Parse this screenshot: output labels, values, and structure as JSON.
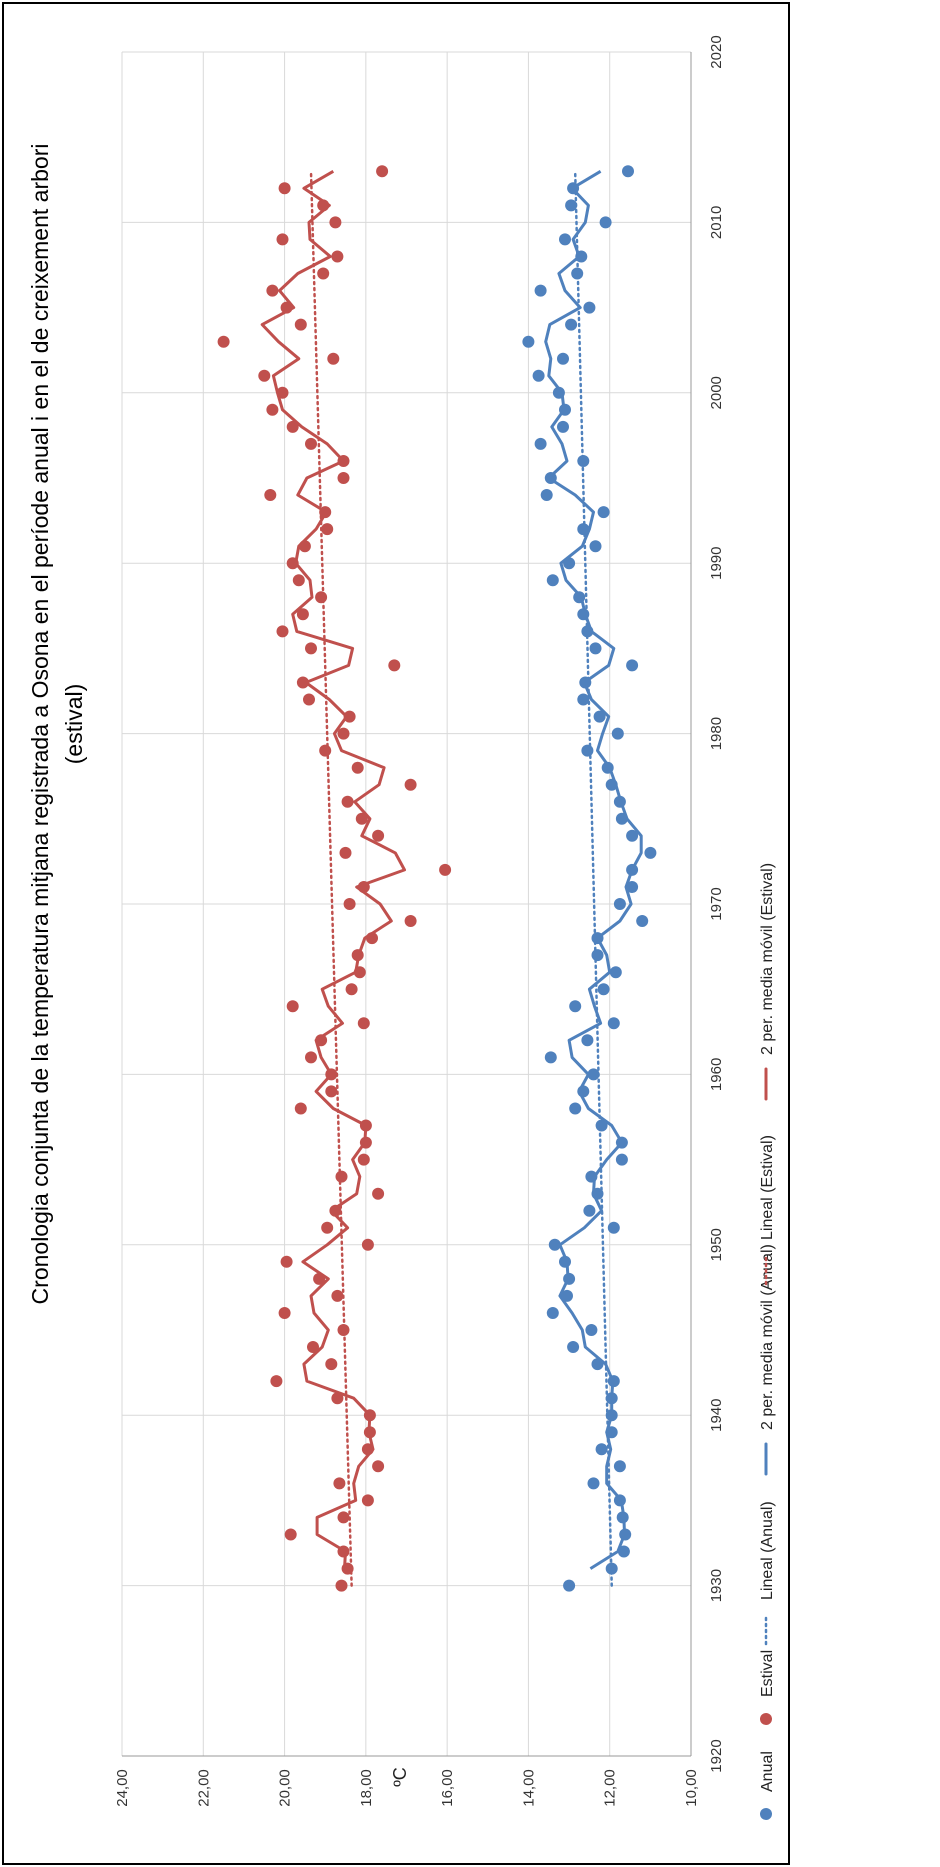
{
  "chart_data": {
    "type": "scatter",
    "title": "Cronologia conjunta de la temperatura  mitjana registrada a Osona en el període anual i en el de creixement arbori (estival)",
    "title_lines": [
      "Cronologia conjunta de la temperatura  mitjana registrada a Osona en el període anual i en el de creixement arbori",
      "(estival)"
    ],
    "xlabel": "",
    "ylabel": "ºC",
    "xlim": [
      1920,
      2020
    ],
    "ylim": [
      10,
      24
    ],
    "x_ticks": [
      "1920",
      "1930",
      "1940",
      "1950",
      "1960",
      "1970",
      "1980",
      "1990",
      "2000",
      "2010",
      "2020"
    ],
    "y_ticks": [
      "10,00",
      "12,00",
      "14,00",
      "16,00",
      "18,00",
      "20,00",
      "22,00",
      "24,00"
    ],
    "grid": true,
    "orientation": "rotated-90-ccw",
    "legend_position": "bottom",
    "colors": {
      "anual": "#4f81bd",
      "estival": "#c0504d"
    },
    "legend": [
      {
        "label": "Anual",
        "style": "marker",
        "series": "anual"
      },
      {
        "label": "Estival",
        "style": "marker",
        "series": "estival"
      },
      {
        "label": "Lineal (Anual)",
        "style": "dotted",
        "series": "anual"
      },
      {
        "label": "2 per. media móvil (Anual)",
        "style": "solid",
        "series": "anual"
      },
      {
        "label": "Lineal (Estival)",
        "style": "dotted",
        "series": "estival"
      },
      {
        "label": "2 per. media móvil (Estival)",
        "style": "solid",
        "series": "estival"
      }
    ],
    "x": [
      1930,
      1931,
      1932,
      1933,
      1934,
      1935,
      1936,
      1937,
      1938,
      1939,
      1940,
      1941,
      1942,
      1943,
      1944,
      1945,
      1946,
      1947,
      1948,
      1949,
      1950,
      1951,
      1952,
      1953,
      1954,
      1955,
      1956,
      1957,
      1958,
      1959,
      1960,
      1961,
      1962,
      1963,
      1964,
      1965,
      1966,
      1967,
      1968,
      1969,
      1970,
      1971,
      1972,
      1973,
      1974,
      1975,
      1976,
      1977,
      1978,
      1979,
      1980,
      1981,
      1982,
      1983,
      1984,
      1985,
      1986,
      1987,
      1988,
      1989,
      1990,
      1991,
      1992,
      1993,
      1994,
      1995,
      1996,
      1997,
      1998,
      1999,
      2000,
      2001,
      2002,
      2003,
      2004,
      2005,
      2006,
      2007,
      2008,
      2009,
      2010,
      2011,
      2012,
      2013
    ],
    "series": [
      {
        "name": "Anual",
        "key": "anual",
        "values": [
          13.0,
          11.95,
          11.65,
          11.62,
          11.68,
          11.75,
          12.4,
          11.75,
          12.2,
          11.95,
          11.95,
          11.95,
          11.9,
          12.3,
          12.9,
          12.45,
          13.4,
          13.05,
          13.0,
          13.1,
          13.35,
          11.9,
          12.5,
          12.3,
          12.45,
          11.7,
          11.7,
          12.2,
          12.85,
          12.65,
          12.4,
          13.45,
          12.55,
          11.9,
          12.85,
          12.15,
          11.85,
          12.3,
          12.3,
          11.2,
          11.75,
          11.45,
          11.45,
          11.0,
          11.45,
          11.7,
          11.75,
          11.95,
          12.05,
          12.55,
          11.8,
          12.25,
          12.65,
          12.6,
          11.45,
          12.35,
          12.55,
          12.65,
          12.75,
          13.4,
          13.0,
          12.35,
          12.65,
          12.15,
          13.55,
          13.45,
          12.65,
          13.7,
          13.15,
          13.1,
          13.25,
          13.75,
          13.15,
          14.0,
          12.95,
          12.5,
          13.7,
          12.8,
          12.7,
          13.1,
          12.1,
          12.95,
          12.9,
          11.55
        ]
      },
      {
        "name": "Estival",
        "key": "estival",
        "values": [
          18.6,
          18.45,
          18.55,
          19.85,
          18.55,
          17.95,
          18.65,
          17.7,
          17.95,
          17.9,
          17.9,
          18.7,
          20.2,
          18.85,
          19.3,
          18.55,
          20.0,
          18.7,
          19.15,
          19.95,
          17.95,
          18.95,
          18.75,
          17.7,
          18.6,
          18.05,
          18.0,
          18.0,
          19.6,
          18.85,
          18.85,
          19.35,
          19.1,
          18.05,
          19.8,
          18.35,
          18.15,
          18.2,
          17.85,
          16.9,
          18.4,
          18.05,
          16.05,
          18.5,
          17.7,
          18.1,
          18.45,
          16.9,
          18.2,
          19.0,
          18.55,
          18.4,
          19.4,
          19.55,
          17.3,
          19.35,
          20.05,
          19.55,
          19.1,
          19.65,
          19.8,
          19.5,
          18.95,
          19.0,
          20.35,
          18.55,
          18.55,
          19.35,
          19.8,
          20.3,
          20.05,
          20.5,
          18.8,
          21.5,
          19.6,
          19.95,
          20.3,
          19.05,
          18.7,
          20.05,
          18.75,
          19.05,
          20.0,
          17.6
        ]
      }
    ],
    "moving_average": [
      {
        "name": "2 per. media móvil (Anual)",
        "key": "anual",
        "period": 2
      },
      {
        "name": "2 per. media móvil (Estival)",
        "key": "estival",
        "period": 2
      }
    ],
    "trendlines": [
      {
        "name": "Lineal (Anual)",
        "key": "anual",
        "x_range": [
          1930,
          2013
        ],
        "y_range": [
          11.95,
          12.85
        ]
      },
      {
        "name": "Lineal (Estival)",
        "key": "estival",
        "x_range": [
          1930,
          2013
        ],
        "y_range": [
          18.35,
          19.35
        ]
      }
    ]
  }
}
